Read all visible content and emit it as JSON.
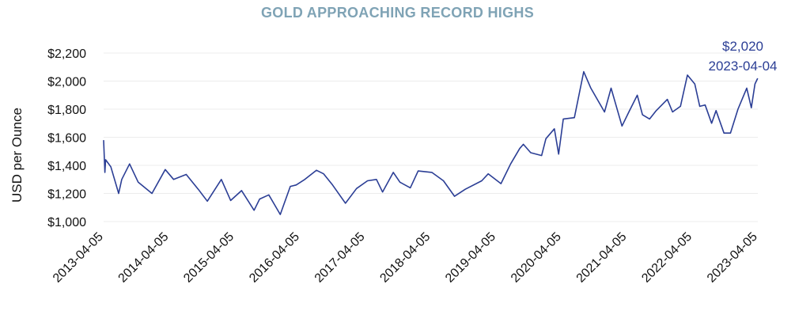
{
  "chart_data": {
    "type": "line",
    "title": "GOLD APPROACHING RECORD HIGHS",
    "ylabel": "USD per Ounce",
    "xlabel": "",
    "ylim": [
      1000,
      2200
    ],
    "y_ticks": [
      1000,
      1200,
      1400,
      1600,
      1800,
      2000,
      2200
    ],
    "y_tick_labels": [
      "$1,000",
      "$1,200",
      "$1,400",
      "$1,600",
      "$1,800",
      "$2,000",
      "$2,200"
    ],
    "x_range": [
      "2013-04-05",
      "2023-04-05"
    ],
    "x_tick_labels": [
      "2013-04-05",
      "2014-04-05",
      "2015-04-05",
      "2016-04-05",
      "2017-04-05",
      "2018-04-05",
      "2019-04-05",
      "2020-04-05",
      "2021-04-05",
      "2022-04-05",
      "2023-04-05"
    ],
    "grid": true,
    "legend": "none",
    "line_color": "#2b3e95",
    "title_color": "#7fa3b5",
    "annotation": {
      "value_label": "$2,020",
      "date_label": "2023-04-04",
      "x": "2023-04-04",
      "y": 2020
    },
    "series": [
      {
        "x": [
          "2013-04-05",
          "2013-04-12",
          "2013-04-16",
          "2013-05-15",
          "2013-06-28",
          "2013-07-15",
          "2013-08-28",
          "2013-10-15",
          "2013-12-31",
          "2014-03-15",
          "2014-05-01",
          "2014-07-10",
          "2014-09-15",
          "2014-11-05",
          "2015-01-22",
          "2015-03-15",
          "2015-05-15",
          "2015-07-24",
          "2015-08-24",
          "2015-10-14",
          "2015-12-17",
          "2016-02-11",
          "2016-03-15",
          "2016-05-02",
          "2016-07-06",
          "2016-08-15",
          "2016-10-04",
          "2016-12-15",
          "2017-02-15",
          "2017-04-17",
          "2017-06-06",
          "2017-07-10",
          "2017-09-08",
          "2017-10-15",
          "2017-12-12",
          "2018-01-25",
          "2018-04-11",
          "2018-06-15",
          "2018-08-16",
          "2018-10-15",
          "2019-01-15",
          "2019-02-20",
          "2019-05-02",
          "2019-06-25",
          "2019-08-15",
          "2019-09-04",
          "2019-10-15",
          "2019-12-15",
          "2020-01-08",
          "2020-02-24",
          "2020-03-19",
          "2020-04-14",
          "2020-06-15",
          "2020-08-06",
          "2020-09-15",
          "2020-11-30",
          "2021-01-06",
          "2021-03-08",
          "2021-04-15",
          "2021-06-01",
          "2021-06-30",
          "2021-08-09",
          "2021-09-15",
          "2021-11-16",
          "2021-12-15",
          "2022-01-28",
          "2022-03-08",
          "2022-04-18",
          "2022-05-16",
          "2022-06-15",
          "2022-07-21",
          "2022-08-15",
          "2022-09-28",
          "2022-11-03",
          "2022-12-15",
          "2023-02-02",
          "2023-02-28",
          "2023-03-20",
          "2023-04-04"
        ],
        "y": [
          1580,
          1350,
          1440,
          1390,
          1200,
          1300,
          1410,
          1280,
          1200,
          1370,
          1300,
          1335,
          1230,
          1145,
          1300,
          1150,
          1220,
          1080,
          1160,
          1190,
          1050,
          1250,
          1260,
          1300,
          1365,
          1340,
          1260,
          1130,
          1235,
          1290,
          1300,
          1210,
          1350,
          1280,
          1240,
          1360,
          1350,
          1290,
          1180,
          1230,
          1290,
          1340,
          1270,
          1410,
          1520,
          1550,
          1490,
          1470,
          1590,
          1660,
          1480,
          1730,
          1740,
          2067,
          1950,
          1780,
          1950,
          1680,
          1780,
          1900,
          1760,
          1730,
          1790,
          1870,
          1780,
          1820,
          2043,
          1980,
          1820,
          1830,
          1700,
          1790,
          1630,
          1630,
          1800,
          1950,
          1810,
          1980,
          2020
        ]
      }
    ]
  }
}
